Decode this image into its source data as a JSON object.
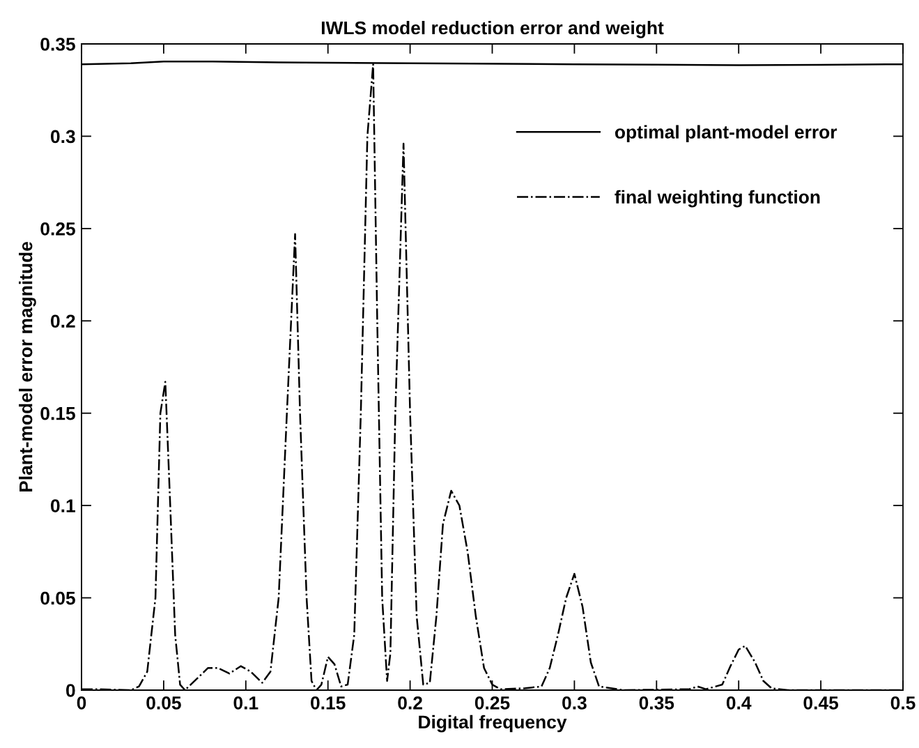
{
  "chart_data": {
    "type": "line",
    "title": "IWLS model reduction error and weight",
    "xlabel": "Digital frequency",
    "ylabel": "Plant-model error magnitude",
    "xlim": [
      0,
      0.5
    ],
    "xticks": [
      0,
      0.05,
      0.1,
      0.15,
      0.2,
      0.25,
      0.3,
      0.35,
      0.4,
      0.45,
      0.5
    ],
    "ylim": [
      0,
      0.35
    ],
    "yticks": [
      0,
      0.05,
      0.1,
      0.15,
      0.2,
      0.25,
      0.3,
      0.35
    ],
    "grid": false,
    "legend": "top right",
    "marker": "none",
    "series": [
      {
        "name": "optimal plant-model error",
        "color": "#000000",
        "line_style": "solid",
        "x": [
          0,
          0.03,
          0.05,
          0.08,
          0.12,
          0.2,
          0.3,
          0.35,
          0.4,
          0.45,
          0.5
        ],
        "values": [
          0.339,
          0.3395,
          0.3405,
          0.3405,
          0.34,
          0.3395,
          0.339,
          0.3388,
          0.3385,
          0.3387,
          0.339
        ]
      },
      {
        "name": "final weighting function",
        "color": "#000000",
        "line_style": "dashdot",
        "x": [
          0,
          0.01,
          0.03,
          0.035,
          0.04,
          0.045,
          0.048,
          0.051,
          0.054,
          0.057,
          0.06,
          0.063,
          0.07,
          0.077,
          0.083,
          0.09,
          0.097,
          0.103,
          0.11,
          0.115,
          0.12,
          0.125,
          0.13,
          0.133,
          0.137,
          0.14,
          0.143,
          0.146,
          0.15,
          0.154,
          0.158,
          0.162,
          0.166,
          0.17,
          0.174,
          0.1775,
          0.18,
          0.183,
          0.186,
          0.188,
          0.191,
          0.196,
          0.2,
          0.204,
          0.208,
          0.212,
          0.216,
          0.22,
          0.225,
          0.23,
          0.235,
          0.24,
          0.245,
          0.25,
          0.255,
          0.27,
          0.28,
          0.285,
          0.29,
          0.295,
          0.3,
          0.305,
          0.31,
          0.315,
          0.33,
          0.37,
          0.375,
          0.38,
          0.39,
          0.395,
          0.4,
          0.404,
          0.41,
          0.415,
          0.42,
          0.43,
          0.5
        ],
        "values": [
          0.0005,
          0.0005,
          0,
          0.002,
          0.01,
          0.05,
          0.15,
          0.167,
          0.1,
          0.03,
          0.003,
          0,
          0.006,
          0.012,
          0.012,
          0.009,
          0.013,
          0.01,
          0.004,
          0.01,
          0.05,
          0.15,
          0.247,
          0.15,
          0.05,
          0.005,
          0,
          0.003,
          0.018,
          0.014,
          0.002,
          0.003,
          0.03,
          0.15,
          0.3,
          0.339,
          0.2,
          0.05,
          0.005,
          0.02,
          0.15,
          0.296,
          0.15,
          0.04,
          0.003,
          0.004,
          0.04,
          0.09,
          0.108,
          0.1,
          0.075,
          0.04,
          0.012,
          0.003,
          0.0005,
          0.001,
          0.002,
          0.012,
          0.03,
          0.05,
          0.063,
          0.045,
          0.015,
          0.002,
          0,
          0.0005,
          0.002,
          0.0005,
          0.003,
          0.013,
          0.022,
          0.024,
          0.015,
          0.005,
          0.001,
          0,
          0
        ]
      }
    ]
  }
}
